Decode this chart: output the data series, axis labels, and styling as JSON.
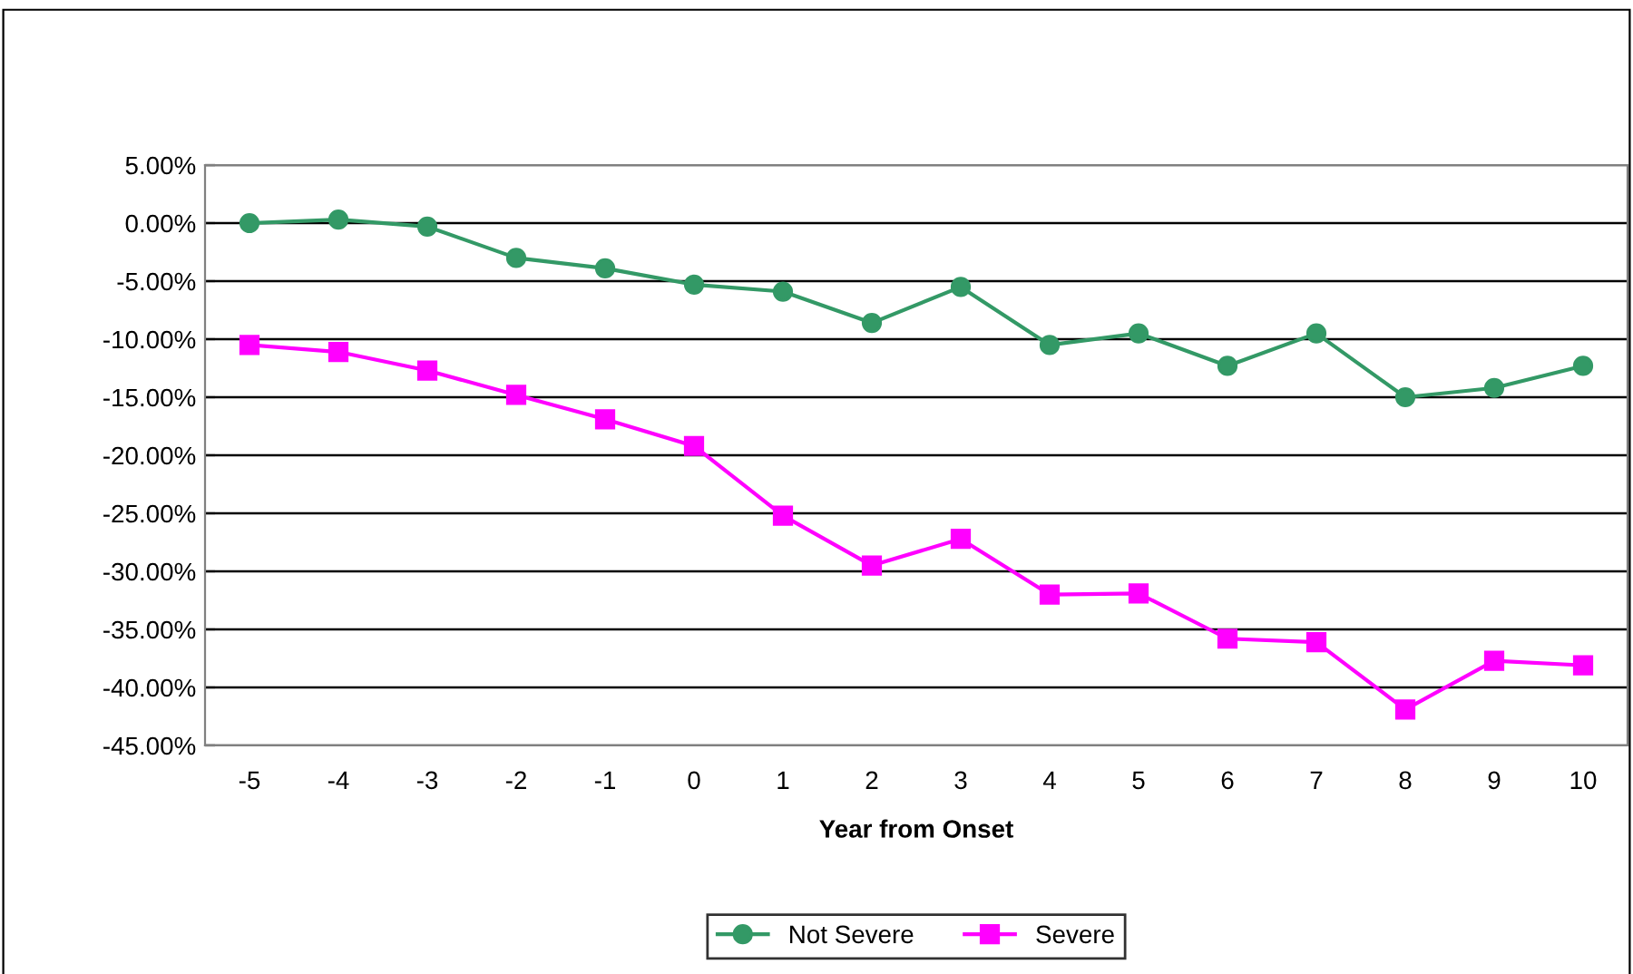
{
  "chart_data": {
    "type": "line",
    "xlabel": "Year from Onset",
    "categories": [
      "-5",
      "-4",
      "-3",
      "-2",
      "-1",
      "0",
      "1",
      "2",
      "3",
      "4",
      "5",
      "6",
      "7",
      "8",
      "9",
      "10"
    ],
    "series": [
      {
        "name": "Not Severe",
        "color": "#339966",
        "marker": "circle",
        "values": [
          0.0,
          0.3,
          -0.3,
          -3.0,
          -3.9,
          -5.3,
          -5.9,
          -8.6,
          -5.5,
          -10.5,
          -9.5,
          -12.3,
          -9.5,
          -15.0,
          -14.2,
          -12.3
        ]
      },
      {
        "name": "Severe",
        "color": "#ff00ff",
        "marker": "square",
        "values": [
          -10.5,
          -11.1,
          -12.7,
          -14.8,
          -16.9,
          -19.2,
          -25.2,
          -29.5,
          -27.2,
          -32.0,
          -31.9,
          -35.8,
          -36.1,
          -41.9,
          -37.7,
          -38.1
        ]
      }
    ],
    "ylim": [
      -45,
      5
    ],
    "yticks": [
      {
        "value": 5,
        "label": "5.00%"
      },
      {
        "value": 0,
        "label": "0.00%"
      },
      {
        "value": -5,
        "label": "-5.00%"
      },
      {
        "value": -10,
        "label": "-10.00%"
      },
      {
        "value": -15,
        "label": "-15.00%"
      },
      {
        "value": -20,
        "label": "-20.00%"
      },
      {
        "value": -25,
        "label": "-25.00%"
      },
      {
        "value": -30,
        "label": "-30.00%"
      },
      {
        "value": -35,
        "label": "-35.00%"
      },
      {
        "value": -40,
        "label": "-40.00%"
      },
      {
        "value": -45,
        "label": "-45.00%"
      }
    ],
    "grid": "y",
    "legend": "bottom"
  }
}
